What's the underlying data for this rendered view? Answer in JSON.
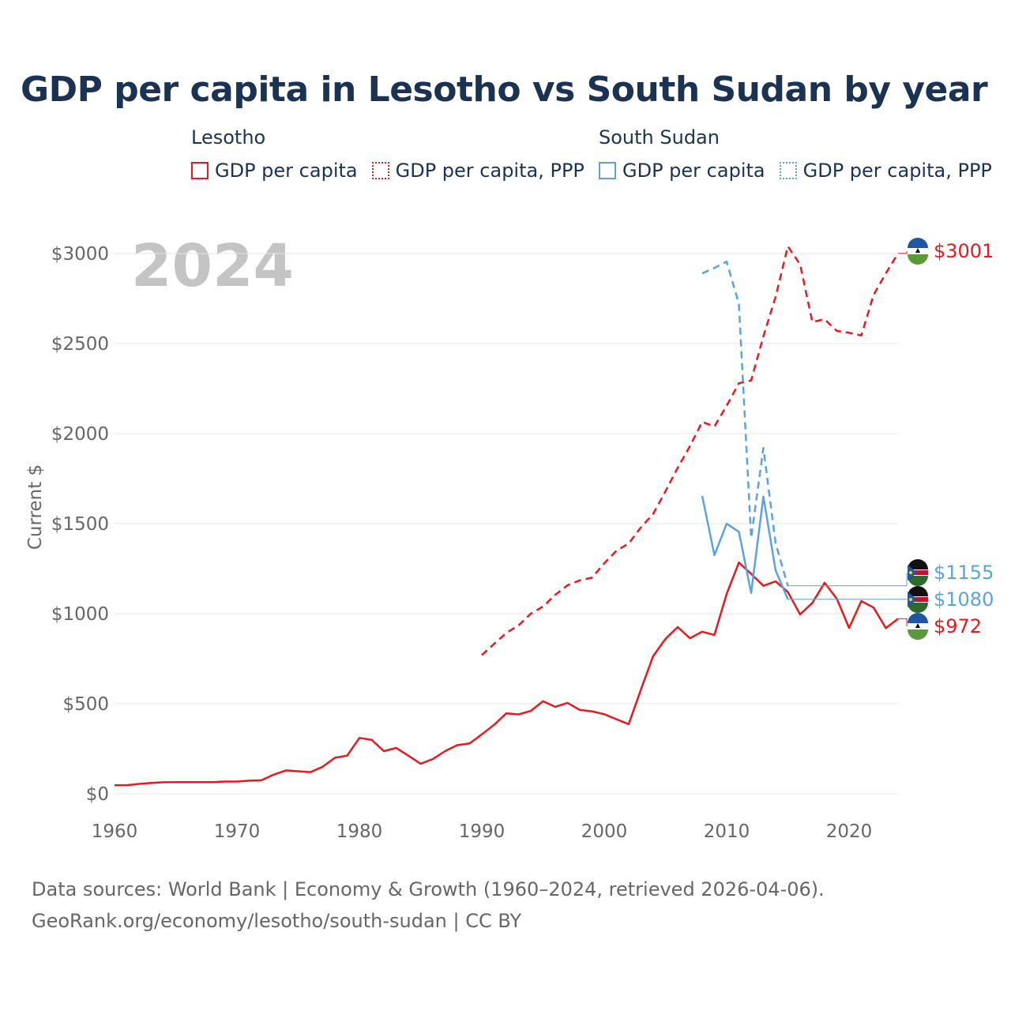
{
  "title": "GDP per capita in Lesotho vs South Sudan by year",
  "legend": {
    "groups": [
      {
        "country": "Lesotho",
        "items": [
          {
            "label": "GDP per capita",
            "style": "solid",
            "color": "#e8191e"
          },
          {
            "label": "GDP per capita, PPP",
            "style": "dotted",
            "color": "#e8191e"
          }
        ]
      },
      {
        "country": "South Sudan",
        "items": [
          {
            "label": "GDP per capita",
            "style": "solid",
            "color": "#5ba3e0"
          },
          {
            "label": "GDP per capita, PPP",
            "style": "dotted",
            "color": "#5ba3e0"
          }
        ]
      }
    ]
  },
  "year_label": "2024",
  "sources": {
    "line1": "Data sources: World Bank | Economy & Growth (1960–2024, retrieved 2026-04-06).",
    "line2": "GeoRank.org/economy/lesotho/south-sudan | CC BY"
  },
  "colors": {
    "lesotho": "#e8191e",
    "south_sudan": "#5ba3e0",
    "title": "#1b3353",
    "axis_text": "#666666",
    "grid": "#e6e6e6",
    "year": "#c4c4c4"
  },
  "chart_data": {
    "type": "line",
    "ylabel": "Current $",
    "xlim": [
      1960,
      2024
    ],
    "ylim": [
      0,
      3000
    ],
    "x_ticks": [
      1960,
      1970,
      1980,
      1990,
      2000,
      2010,
      2020
    ],
    "y_ticks": [
      0,
      500,
      1000,
      1500,
      2000,
      2500,
      3000
    ],
    "y_tick_labels": [
      "$0",
      "$500",
      "$1000",
      "$1500",
      "$2000",
      "$2500",
      "$3000"
    ],
    "grid": true,
    "series": [
      {
        "name": "Lesotho GDP per capita",
        "country": "Lesotho",
        "dash": "solid",
        "color": "#e8191e",
        "x": [
          1960,
          1961,
          1962,
          1963,
          1964,
          1965,
          1966,
          1967,
          1968,
          1969,
          1970,
          1971,
          1972,
          1973,
          1974,
          1975,
          1976,
          1977,
          1978,
          1979,
          1980,
          1981,
          1982,
          1983,
          1984,
          1985,
          1986,
          1987,
          1988,
          1989,
          1990,
          1991,
          1992,
          1993,
          1994,
          1995,
          1996,
          1997,
          1998,
          1999,
          2000,
          2001,
          2002,
          2003,
          2004,
          2005,
          2006,
          2007,
          2008,
          2009,
          2010,
          2011,
          2012,
          2013,
          2014,
          2015,
          2016,
          2017,
          2018,
          2019,
          2020,
          2021,
          2022,
          2023,
          2024
        ],
        "values": [
          48,
          48,
          55,
          60,
          64,
          65,
          65,
          65,
          65,
          68,
          68,
          73,
          75,
          106,
          130,
          125,
          120,
          150,
          200,
          212,
          310,
          300,
          237,
          255,
          212,
          167,
          193,
          237,
          270,
          280,
          330,
          383,
          447,
          441,
          460,
          514,
          483,
          505,
          466,
          458,
          442,
          414,
          387,
          580,
          765,
          860,
          926,
          864,
          900,
          882,
          1110,
          1284,
          1221,
          1155,
          1180,
          1120,
          996,
          1060,
          1172,
          1083,
          921,
          1070,
          1034,
          920,
          972
        ],
        "end_label": "$972"
      },
      {
        "name": "Lesotho GDP per capita, PPP",
        "country": "Lesotho",
        "dash": "dashed",
        "color": "#e8191e",
        "x": [
          1990,
          1991,
          1992,
          1993,
          1994,
          1995,
          1996,
          1997,
          1998,
          1999,
          2000,
          2001,
          2002,
          2003,
          2004,
          2005,
          2006,
          2007,
          2008,
          2009,
          2010,
          2011,
          2012,
          2013,
          2014,
          2015,
          2016,
          2017,
          2018,
          2019,
          2020,
          2021,
          2022,
          2023,
          2024
        ],
        "values": [
          770,
          832,
          893,
          935,
          1000,
          1040,
          1105,
          1158,
          1185,
          1200,
          1280,
          1350,
          1390,
          1480,
          1555,
          1680,
          1810,
          1930,
          2065,
          2040,
          2155,
          2280,
          2295,
          2540,
          2760,
          3040,
          2940,
          2620,
          2635,
          2570,
          2560,
          2545,
          2770,
          2890,
          3001
        ],
        "end_label": "$3001"
      },
      {
        "name": "South Sudan GDP per capita",
        "country": "South Sudan",
        "dash": "solid",
        "color": "#5ba3e0",
        "x": [
          2008,
          2009,
          2010,
          2011,
          2012,
          2013,
          2014,
          2015
        ],
        "values": [
          1655,
          1325,
          1500,
          1455,
          1115,
          1650,
          1240,
          1080
        ],
        "end_label": "$1080"
      },
      {
        "name": "South Sudan GDP per capita, PPP",
        "country": "South Sudan",
        "dash": "dashed",
        "color": "#5ba3e0",
        "x": [
          2008,
          2009,
          2010,
          2011,
          2012,
          2013,
          2014,
          2015
        ],
        "values": [
          2890,
          2920,
          2955,
          2720,
          1420,
          1920,
          1390,
          1155
        ],
        "end_label": "$1155"
      }
    ]
  }
}
